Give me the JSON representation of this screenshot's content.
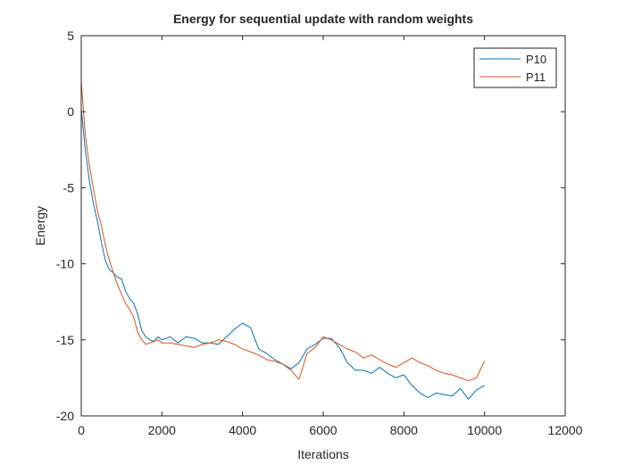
{
  "chart_data": {
    "type": "line",
    "title": "Energy for sequential update with random weights",
    "xlabel": "Iterations",
    "ylabel": "Energy",
    "xlim": [
      0,
      12000
    ],
    "ylim": [
      -20,
      5
    ],
    "xticks": [
      0,
      2000,
      4000,
      6000,
      8000,
      10000,
      12000
    ],
    "yticks": [
      -20,
      -15,
      -10,
      -5,
      0,
      5
    ],
    "xtick_labels": [
      "0",
      "2000",
      "4000",
      "6000",
      "8000",
      "10000",
      "12000"
    ],
    "ytick_labels": [
      "-20",
      "-15",
      "-10",
      "-5",
      "0",
      "5"
    ],
    "grid": false,
    "legend_position": "top-right",
    "series": [
      {
        "name": "P10",
        "color": "#0072BD",
        "x": [
          0,
          100,
          200,
          300,
          400,
          500,
          600,
          700,
          800,
          900,
          1000,
          1100,
          1200,
          1300,
          1400,
          1500,
          1600,
          1700,
          1800,
          1900,
          2000,
          2200,
          2400,
          2600,
          2800,
          3000,
          3200,
          3400,
          3600,
          3800,
          4000,
          4200,
          4400,
          4600,
          4800,
          5000,
          5200,
          5400,
          5600,
          5800,
          6000,
          6200,
          6400,
          6600,
          6800,
          7000,
          7200,
          7400,
          7600,
          7800,
          8000,
          8200,
          8400,
          8600,
          8800,
          9000,
          9200,
          9400,
          9600,
          9800,
          10000
        ],
        "y": [
          0.2,
          -2.5,
          -4.5,
          -6.0,
          -7.2,
          -8.6,
          -9.8,
          -10.4,
          -10.6,
          -10.9,
          -11.0,
          -11.8,
          -12.3,
          -12.6,
          -13.3,
          -14.4,
          -14.8,
          -15.0,
          -15.1,
          -14.8,
          -15.0,
          -14.8,
          -15.2,
          -14.8,
          -14.9,
          -15.2,
          -15.2,
          -15.3,
          -14.8,
          -14.3,
          -13.9,
          -14.2,
          -15.6,
          -15.9,
          -16.3,
          -16.6,
          -16.9,
          -16.5,
          -15.6,
          -15.3,
          -14.9,
          -14.9,
          -15.5,
          -16.5,
          -17.0,
          -17.0,
          -17.2,
          -16.8,
          -17.2,
          -17.5,
          -17.3,
          -18.0,
          -18.5,
          -18.8,
          -18.5,
          -18.6,
          -18.7,
          -18.2,
          -18.9,
          -18.3,
          -18.0
        ]
      },
      {
        "name": "P11",
        "color": "#D95319",
        "x": [
          0,
          100,
          200,
          300,
          400,
          500,
          600,
          700,
          800,
          900,
          1000,
          1100,
          1200,
          1300,
          1400,
          1500,
          1600,
          1700,
          1800,
          1900,
          2000,
          2200,
          2400,
          2600,
          2800,
          3000,
          3200,
          3400,
          3600,
          3800,
          4000,
          4200,
          4400,
          4600,
          4800,
          5000,
          5200,
          5400,
          5600,
          5800,
          6000,
          6200,
          6400,
          6600,
          6800,
          7000,
          7200,
          7400,
          7600,
          7800,
          8000,
          8200,
          8400,
          8600,
          8800,
          9000,
          9200,
          9400,
          9600,
          9800,
          10000
        ],
        "y": [
          2.0,
          -1.5,
          -3.5,
          -5.0,
          -6.5,
          -7.5,
          -8.8,
          -9.8,
          -10.6,
          -11.4,
          -12.0,
          -12.6,
          -13.0,
          -13.5,
          -14.5,
          -15.0,
          -15.3,
          -15.2,
          -15.1,
          -15.0,
          -15.2,
          -15.2,
          -15.3,
          -15.4,
          -15.5,
          -15.3,
          -15.2,
          -15.0,
          -15.1,
          -15.3,
          -15.6,
          -15.8,
          -16.0,
          -16.3,
          -16.4,
          -16.6,
          -17.0,
          -17.6,
          -15.9,
          -15.5,
          -14.8,
          -15.0,
          -15.3,
          -15.6,
          -15.8,
          -16.2,
          -16.0,
          -16.3,
          -16.6,
          -16.8,
          -16.5,
          -16.2,
          -16.5,
          -16.7,
          -17.0,
          -17.2,
          -17.3,
          -17.5,
          -17.7,
          -17.5,
          -16.4
        ]
      }
    ]
  }
}
